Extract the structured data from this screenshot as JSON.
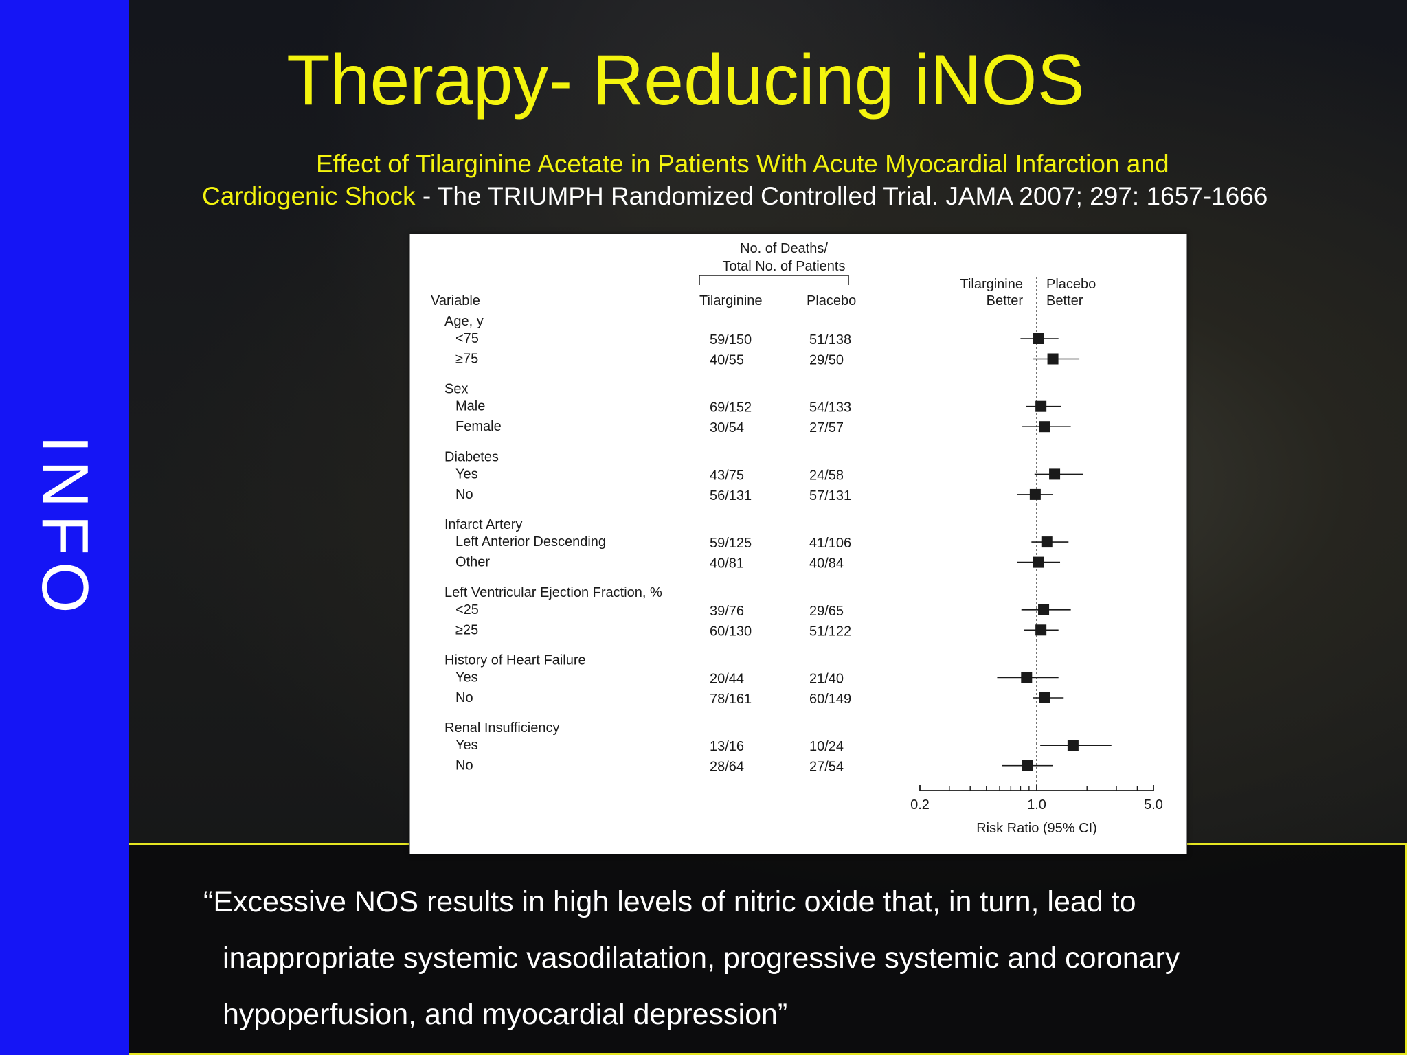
{
  "side_label": "INFO",
  "title": "Therapy- Reducing iNOS",
  "subtitle": {
    "line1": "Effect of Tilarginine Acetate in Patients With Acute Myocardial Infarction and",
    "line2_yellow": "Cardiogenic Shock",
    "line2_white": " - The TRIUMPH Randomized Controlled Trial. JAMA 2007; 297: 1657-1666"
  },
  "quote": {
    "line1": "“Excessive NOS results in high levels of nitric oxide that, in turn, lead to",
    "line2": "inappropriate systemic vasodilatation, progressive systemic and coronary",
    "line3": "hypoperfusion, and myocardial depression”"
  },
  "chart_data": {
    "type": "forest",
    "header_group": [
      "No. of Deaths/",
      "Total No. of Patients"
    ],
    "col_variable": "Variable",
    "col_tilarginine": "Tilarginine",
    "col_placebo": "Placebo",
    "left_label": [
      "Tilarginine",
      "Better"
    ],
    "right_label": [
      "Placebo",
      "Better"
    ],
    "xlabel": "Risk Ratio (95% CI)",
    "x_scale": "log",
    "xlim": [
      0.2,
      5.0
    ],
    "x_ticklabels": [
      "0.2",
      "1.0",
      "5.0"
    ],
    "minor_ticks": [
      0.3,
      0.4,
      0.5,
      0.6,
      0.7,
      0.8,
      0.9,
      2,
      3,
      4
    ],
    "groups": [
      {
        "name": "Age, y",
        "rows": [
          {
            "label": "<75",
            "tilarginine": "59/150",
            "placebo": "51/138",
            "rr": 1.02,
            "lo": 0.8,
            "hi": 1.35
          },
          {
            "label": "≥75",
            "tilarginine": "40/55",
            "placebo": "29/50",
            "rr": 1.25,
            "lo": 0.95,
            "hi": 1.8
          }
        ]
      },
      {
        "name": "Sex",
        "rows": [
          {
            "label": "Male",
            "tilarginine": "69/152",
            "placebo": "54/133",
            "rr": 1.06,
            "lo": 0.86,
            "hi": 1.4
          },
          {
            "label": "Female",
            "tilarginine": "30/54",
            "placebo": "27/57",
            "rr": 1.12,
            "lo": 0.82,
            "hi": 1.6
          }
        ]
      },
      {
        "name": "Diabetes",
        "rows": [
          {
            "label": "Yes",
            "tilarginine": "43/75",
            "placebo": "24/58",
            "rr": 1.28,
            "lo": 0.97,
            "hi": 1.9
          },
          {
            "label": "No",
            "tilarginine": "56/131",
            "placebo": "57/131",
            "rr": 0.98,
            "lo": 0.76,
            "hi": 1.25
          }
        ]
      },
      {
        "name": "Infarct Artery",
        "rows": [
          {
            "label": "Left Anterior Descending",
            "tilarginine": "59/125",
            "placebo": "41/106",
            "rr": 1.15,
            "lo": 0.93,
            "hi": 1.55
          },
          {
            "label": "Other",
            "tilarginine": "40/81",
            "placebo": "40/84",
            "rr": 1.02,
            "lo": 0.76,
            "hi": 1.38
          }
        ]
      },
      {
        "name": "Left Ventricular Ejection Fraction, %",
        "rows": [
          {
            "label": "<25",
            "tilarginine": "39/76",
            "placebo": "29/65",
            "rr": 1.1,
            "lo": 0.81,
            "hi": 1.6
          },
          {
            "label": "≥25",
            "tilarginine": "60/130",
            "placebo": "51/122",
            "rr": 1.06,
            "lo": 0.84,
            "hi": 1.35
          }
        ]
      },
      {
        "name": "History of Heart Failure",
        "rows": [
          {
            "label": "Yes",
            "tilarginine": "20/44",
            "placebo": "21/40",
            "rr": 0.87,
            "lo": 0.58,
            "hi": 1.35
          },
          {
            "label": "No",
            "tilarginine": "78/161",
            "placebo": "60/149",
            "rr": 1.12,
            "lo": 0.95,
            "hi": 1.45
          }
        ]
      },
      {
        "name": "Renal Insufficiency",
        "rows": [
          {
            "label": "Yes",
            "tilarginine": "13/16",
            "placebo": "10/24",
            "rr": 1.65,
            "lo": 1.05,
            "hi": 2.8
          },
          {
            "label": "No",
            "tilarginine": "28/64",
            "placebo": "27/54",
            "rr": 0.88,
            "lo": 0.62,
            "hi": 1.25
          }
        ]
      }
    ]
  }
}
